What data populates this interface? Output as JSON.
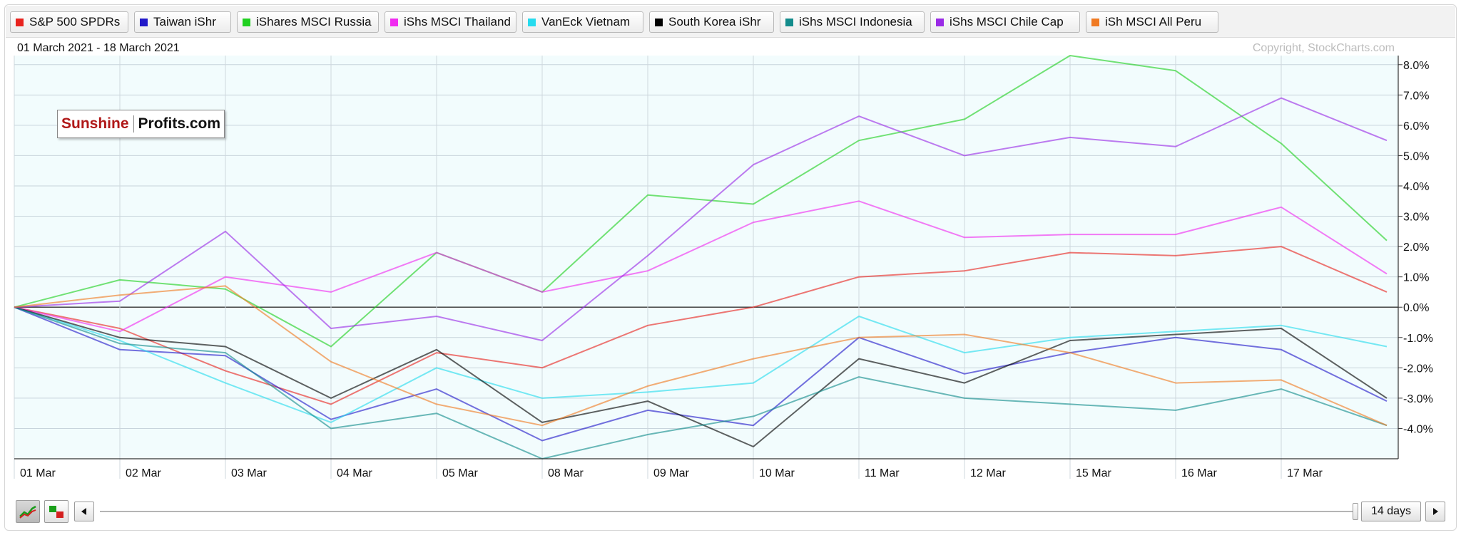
{
  "legend": [
    {
      "label": "S&P 500 SPDRs",
      "color": "#e8231e"
    },
    {
      "label": "Taiwan iShr",
      "color": "#2219c9"
    },
    {
      "label": "iShares MSCI Russia",
      "color": "#20d020"
    },
    {
      "label": "iShs MSCI Thailand",
      "color": "#f02af0"
    },
    {
      "label": "VanEck Vietnam",
      "color": "#26dbee"
    },
    {
      "label": "South Korea iShr",
      "color": "#000000"
    },
    {
      "label": "iShs MSCI Indonesia",
      "color": "#138c8c"
    },
    {
      "label": "iShs MSCI Chile Cap",
      "color": "#9a2ae6"
    },
    {
      "label": "iSh MSCI All Peru",
      "color": "#f07a22"
    }
  ],
  "date_range": "01 March 2021 - 18 March 2021",
  "copyright": "Copyright, StockCharts.com",
  "watermark": {
    "part1": "Sunshine",
    "part2": "Profits.com"
  },
  "controls": {
    "period_label": "14 days",
    "prev_icon": "left-arrow-icon",
    "next_icon": "right-arrow-icon",
    "chart_type_icons": [
      "line-chart-icon",
      "candlestick-icon"
    ]
  },
  "chart_data": {
    "type": "line",
    "x": [
      "01 Mar",
      "02 Mar",
      "03 Mar",
      "04 Mar",
      "05 Mar",
      "08 Mar",
      "09 Mar",
      "10 Mar",
      "11 Mar",
      "12 Mar",
      "15 Mar",
      "16 Mar",
      "17 Mar",
      "18 Mar"
    ],
    "tick_labels": [
      "01 Mar",
      "02 Mar",
      "03 Mar",
      "04 Mar",
      "05 Mar",
      "08 Mar",
      "09 Mar",
      "10 Mar",
      "11 Mar",
      "12 Mar",
      "15 Mar",
      "16 Mar",
      "17 Mar"
    ],
    "ylim": [
      -5.0,
      8.3
    ],
    "yticks": [
      8,
      7,
      6,
      5,
      4,
      3,
      2,
      1,
      0,
      -1,
      -2,
      -3,
      -4
    ],
    "ytick_labels": [
      "8.0%",
      "7.0%",
      "6.0%",
      "5.0%",
      "4.0%",
      "3.0%",
      "2.0%",
      "1.0%",
      "0.0%",
      "-1.0%",
      "-2.0%",
      "-3.0%",
      "-4.0%"
    ],
    "y_axis_position": "right",
    "grid": true,
    "series": [
      {
        "name": "S&P 500 SPDRs",
        "color": "#e8231e",
        "values": [
          0,
          -0.7,
          -2.1,
          -3.2,
          -1.5,
          -2.0,
          -0.6,
          0.0,
          1.0,
          1.2,
          1.8,
          1.7,
          2.0,
          0.5
        ]
      },
      {
        "name": "Taiwan iShr",
        "color": "#2219c9",
        "values": [
          0,
          -1.4,
          -1.6,
          -3.7,
          -2.7,
          -4.4,
          -3.4,
          -3.9,
          -1.0,
          -2.2,
          -1.5,
          -1.0,
          -1.4,
          -3.1
        ]
      },
      {
        "name": "iShares MSCI Russia",
        "color": "#20d020",
        "values": [
          0,
          0.9,
          0.6,
          -1.3,
          1.8,
          0.5,
          3.7,
          3.4,
          5.5,
          6.2,
          8.3,
          7.8,
          5.4,
          2.2
        ]
      },
      {
        "name": "iShs MSCI Thailand",
        "color": "#f02af0",
        "values": [
          0,
          -0.8,
          1.0,
          0.5,
          1.8,
          0.5,
          1.2,
          2.8,
          3.5,
          2.3,
          2.4,
          2.4,
          3.3,
          1.1
        ]
      },
      {
        "name": "VanEck Vietnam",
        "color": "#26dbee",
        "values": [
          0,
          -1.1,
          -2.5,
          -3.8,
          -2.0,
          -3.0,
          -2.8,
          -2.5,
          -0.3,
          -1.5,
          -1.0,
          -0.8,
          -0.6,
          -1.3
        ]
      },
      {
        "name": "South Korea iShr",
        "color": "#000000",
        "values": [
          0,
          -1.0,
          -1.3,
          -3.0,
          -1.4,
          -3.8,
          -3.1,
          -4.6,
          -1.7,
          -2.5,
          -1.1,
          -0.9,
          -0.7,
          -3.0
        ]
      },
      {
        "name": "iShs MSCI Indonesia",
        "color": "#138c8c",
        "values": [
          0,
          -1.2,
          -1.5,
          -4.0,
          -3.5,
          -5.0,
          -4.2,
          -3.6,
          -2.3,
          -3.0,
          -3.2,
          -3.4,
          -2.7,
          -3.9
        ]
      },
      {
        "name": "iShs MSCI Chile Cap",
        "color": "#9a2ae6",
        "values": [
          0,
          0.2,
          2.5,
          -0.7,
          -0.3,
          -1.1,
          1.7,
          4.7,
          6.3,
          5.0,
          5.6,
          5.3,
          6.9,
          5.5
        ]
      },
      {
        "name": "iSh MSCI All Peru",
        "color": "#f07a22",
        "values": [
          0,
          0.4,
          0.7,
          -1.8,
          -3.2,
          -3.9,
          -2.6,
          -1.7,
          -1.0,
          -0.9,
          -1.5,
          -2.5,
          -2.4,
          -3.9
        ]
      }
    ]
  }
}
